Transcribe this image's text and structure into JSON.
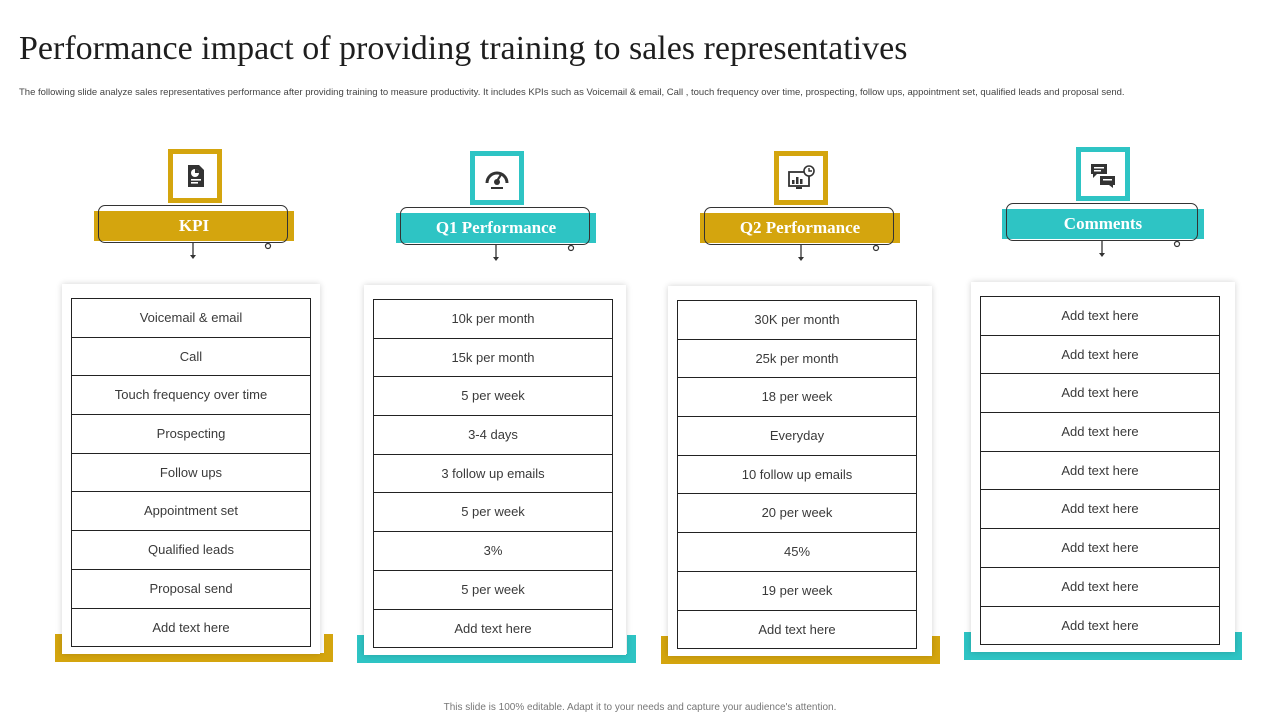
{
  "page": {
    "title": "Performance impact of providing training to sales representatives",
    "subtitle": "The following slide analyze sales representatives performance after providing training to measure productivity. It includes KPIs  such as Voicemail & email,  Call , touch frequency over time, prospecting, follow ups, appointment set, qualified leads and proposal send.",
    "footer": "This slide is 100% editable.  Adapt it to your needs and capture your audience's attention."
  },
  "colors": {
    "gold": "#D4A50E",
    "teal": "#2EC4C4",
    "text": "#3a3a3a"
  },
  "columns": [
    {
      "heading": "KPI",
      "icon": "report-document-icon",
      "accent": "gold",
      "rows": [
        "Voicemail & email",
        "Call",
        "Touch frequency over time",
        "Prospecting",
        "Follow ups",
        "Appointment set",
        "Qualified leads",
        "Proposal send",
        "Add text here"
      ]
    },
    {
      "heading": "Q1 Performance",
      "icon": "speedometer-icon",
      "accent": "teal",
      "rows": [
        "10k per month",
        "15k per month",
        "5 per week",
        "3-4 days",
        "3 follow up emails",
        "5 per week",
        "3%",
        "5 per week",
        "Add text here"
      ]
    },
    {
      "heading": "Q2 Performance",
      "icon": "monitor-analytics-icon",
      "accent": "gold",
      "rows": [
        "30K per month",
        "25k per month",
        "18 per week",
        "Everyday",
        "10 follow up emails",
        "20 per week",
        "45%",
        "19 per week",
        "Add text here"
      ]
    },
    {
      "heading": "Comments",
      "icon": "chat-bubbles-icon",
      "accent": "teal",
      "rows": [
        "Add text here",
        "Add text here",
        "Add text here",
        "Add text here",
        "Add text here",
        "Add text here",
        "Add text here",
        "Add text here",
        "Add text here"
      ]
    }
  ]
}
